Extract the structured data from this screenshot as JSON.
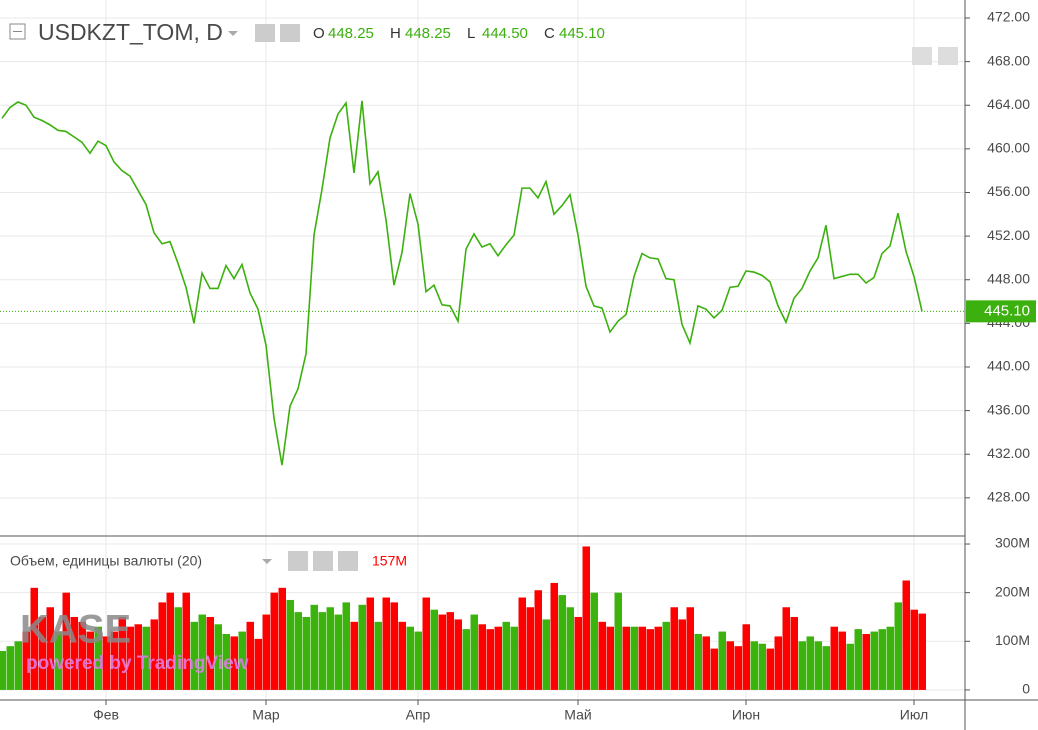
{
  "header": {
    "symbol": "USDKZT_TOM, D",
    "ohlc": [
      {
        "label": "O",
        "value": "448.25"
      },
      {
        "label": "H",
        "value": "448.25"
      },
      {
        "label": "L",
        "value": "444.50"
      },
      {
        "label": "C",
        "value": "445.10"
      }
    ]
  },
  "logo": {
    "name": "KASE",
    "tagline": "powered by TradingView"
  },
  "chart_data": [
    {
      "type": "line",
      "color": "#3cb00f",
      "grid": true,
      "values": [
        462.8,
        463.8,
        464.3,
        464.0,
        462.9,
        462.6,
        462.2,
        461.7,
        461.6,
        461.1,
        460.6,
        459.6,
        460.7,
        460.3,
        458.8,
        458.0,
        457.5,
        456.2,
        454.9,
        452.3,
        451.3,
        451.5,
        449.5,
        447.3,
        444.0,
        448.6,
        447.2,
        447.2,
        449.3,
        448.1,
        449.4,
        446.8,
        445.3,
        442.0,
        435.3,
        431.0,
        436.4,
        438.0,
        441.2,
        452.1,
        456.3,
        461.0,
        463.2,
        464.2,
        457.8,
        464.4,
        456.8,
        457.9,
        453.5,
        447.5,
        450.5,
        455.9,
        453.1,
        446.9,
        447.5,
        445.7,
        445.6,
        444.2,
        450.8,
        452.2,
        451.0,
        451.3,
        450.2,
        451.2,
        452.1,
        456.4,
        456.4,
        455.5,
        457.0,
        454.0,
        454.8,
        455.8,
        452.1,
        447.4,
        445.6,
        445.4,
        443.2,
        444.2,
        444.8,
        448.3,
        450.4,
        450.0,
        449.9,
        448.1,
        448.0,
        443.9,
        442.2,
        445.6,
        445.3,
        444.5,
        445.2,
        447.3,
        447.4,
        448.8,
        448.7,
        448.4,
        447.8,
        445.6,
        444.1,
        446.3,
        447.2,
        448.8,
        450.0,
        453.0,
        448.1,
        448.3,
        448.5,
        448.5,
        447.7,
        448.2,
        450.4,
        451.1,
        454.1,
        450.6,
        448.3,
        445.1
      ],
      "ylim": [
        424.5,
        473.65
      ],
      "yticks": [
        {
          "value": 428,
          "label": "428.00"
        },
        {
          "value": 432,
          "label": "432.00"
        },
        {
          "value": 436,
          "label": "436.00"
        },
        {
          "value": 440,
          "label": "440.00"
        },
        {
          "value": 444,
          "label": "444.00"
        },
        {
          "value": 448,
          "label": "448.00"
        },
        {
          "value": 452,
          "label": "452.00"
        },
        {
          "value": 456,
          "label": "456.00"
        },
        {
          "value": 460,
          "label": "460.00"
        },
        {
          "value": 464,
          "label": "464.00"
        },
        {
          "value": 468,
          "label": "468.00"
        },
        {
          "value": 472,
          "label": "472.00"
        }
      ],
      "last_value": {
        "value": 445.1,
        "label": "445.10"
      }
    },
    {
      "type": "bar",
      "title": "Объем, единицы валюты (20)",
      "value_readout": "157M",
      "grid": true,
      "categories": [
        null,
        null,
        null,
        null,
        null,
        null,
        null,
        null,
        null,
        null,
        null,
        null,
        null,
        "Фев",
        null,
        null,
        null,
        null,
        null,
        null,
        null,
        null,
        null,
        null,
        null,
        null,
        null,
        null,
        null,
        null,
        null,
        null,
        null,
        "Мар",
        null,
        null,
        null,
        null,
        null,
        null,
        null,
        null,
        null,
        null,
        null,
        null,
        null,
        null,
        null,
        null,
        null,
        null,
        "Апр",
        null,
        null,
        null,
        null,
        null,
        null,
        null,
        null,
        null,
        null,
        null,
        null,
        null,
        null,
        null,
        null,
        null,
        null,
        null,
        "Май",
        null,
        null,
        null,
        null,
        null,
        null,
        null,
        null,
        null,
        null,
        null,
        null,
        null,
        null,
        null,
        null,
        null,
        null,
        null,
        null,
        "Июн",
        null,
        null,
        null,
        null,
        null,
        null,
        null,
        null,
        null,
        null,
        null,
        null,
        null,
        null,
        null,
        null,
        null,
        null,
        null,
        null,
        "Июл",
        null
      ],
      "values": [
        80,
        90,
        100,
        120,
        210,
        150,
        170,
        120,
        200,
        150,
        140,
        120,
        130,
        110,
        120,
        150,
        130,
        135,
        130,
        145,
        180,
        200,
        170,
        200,
        140,
        155,
        150,
        135,
        115,
        110,
        120,
        140,
        105,
        155,
        200,
        210,
        185,
        160,
        150,
        175,
        160,
        170,
        155,
        180,
        140,
        175,
        190,
        140,
        190,
        180,
        140,
        130,
        120,
        190,
        165,
        155,
        160,
        145,
        125,
        155,
        135,
        125,
        130,
        140,
        130,
        190,
        170,
        205,
        145,
        220,
        195,
        170,
        150,
        295,
        200,
        140,
        130,
        200,
        130,
        130,
        130,
        125,
        130,
        140,
        170,
        145,
        170,
        115,
        110,
        85,
        120,
        100,
        90,
        135,
        100,
        95,
        85,
        110,
        170,
        150,
        100,
        110,
        100,
        90,
        130,
        120,
        95,
        125,
        115,
        120,
        125,
        130,
        180,
        225,
        165,
        157
      ],
      "colors": [
        "#3bb30c",
        "#3bb30c",
        "#3bb30c",
        "#ff0000",
        "#ff0000",
        "#ff0000",
        "#ff0000",
        "#3bb30c",
        "#ff0000",
        "#ff0000",
        "#ff0000",
        "#ff0000",
        "#3bb30c",
        "#ff0000",
        "#ff0000",
        "#ff0000",
        "#ff0000",
        "#ff0000",
        "#3bb30c",
        "#ff0000",
        "#ff0000",
        "#ff0000",
        "#3bb30c",
        "#ff0000",
        "#3bb30c",
        "#3bb30c",
        "#ff0000",
        "#3bb30c",
        "#3bb30c",
        "#ff0000",
        "#3bb30c",
        "#ff0000",
        "#ff0000",
        "#ff0000",
        "#ff0000",
        "#ff0000",
        "#3bb30c",
        "#3bb30c",
        "#3bb30c",
        "#3bb30c",
        "#3bb30c",
        "#3bb30c",
        "#3bb30c",
        "#3bb30c",
        "#ff0000",
        "#3bb30c",
        "#ff0000",
        "#3bb30c",
        "#ff0000",
        "#ff0000",
        "#ff0000",
        "#3bb30c",
        "#3bb30c",
        "#ff0000",
        "#3bb30c",
        "#ff0000",
        "#ff0000",
        "#ff0000",
        "#3bb30c",
        "#3bb30c",
        "#ff0000",
        "#ff0000",
        "#ff0000",
        "#3bb30c",
        "#3bb30c",
        "#ff0000",
        "#ff0000",
        "#ff0000",
        "#3bb30c",
        "#ff0000",
        "#3bb30c",
        "#3bb30c",
        "#ff0000",
        "#ff0000",
        "#3bb30c",
        "#ff0000",
        "#ff0000",
        "#3bb30c",
        "#ff0000",
        "#3bb30c",
        "#ff0000",
        "#ff0000",
        "#ff0000",
        "#3bb30c",
        "#ff0000",
        "#ff0000",
        "#ff0000",
        "#3bb30c",
        "#ff0000",
        "#ff0000",
        "#3bb30c",
        "#ff0000",
        "#ff0000",
        "#ff0000",
        "#3bb30c",
        "#3bb30c",
        "#ff0000",
        "#ff0000",
        "#ff0000",
        "#ff0000",
        "#3bb30c",
        "#3bb30c",
        "#3bb30c",
        "#3bb30c",
        "#ff0000",
        "#ff0000",
        "#3bb30c",
        "#3bb30c",
        "#ff0000",
        "#3bb30c",
        "#3bb30c",
        "#3bb30c",
        "#3bb30c",
        "#ff0000",
        "#ff0000",
        "#ff0000"
      ],
      "ylim": [
        -20.7,
        316.5
      ],
      "yticks": [
        0,
        {
          "value": 100,
          "label": "100M"
        },
        {
          "value": 200,
          "label": "200M"
        },
        {
          "value": 300,
          "label": "300M"
        }
      ]
    }
  ]
}
